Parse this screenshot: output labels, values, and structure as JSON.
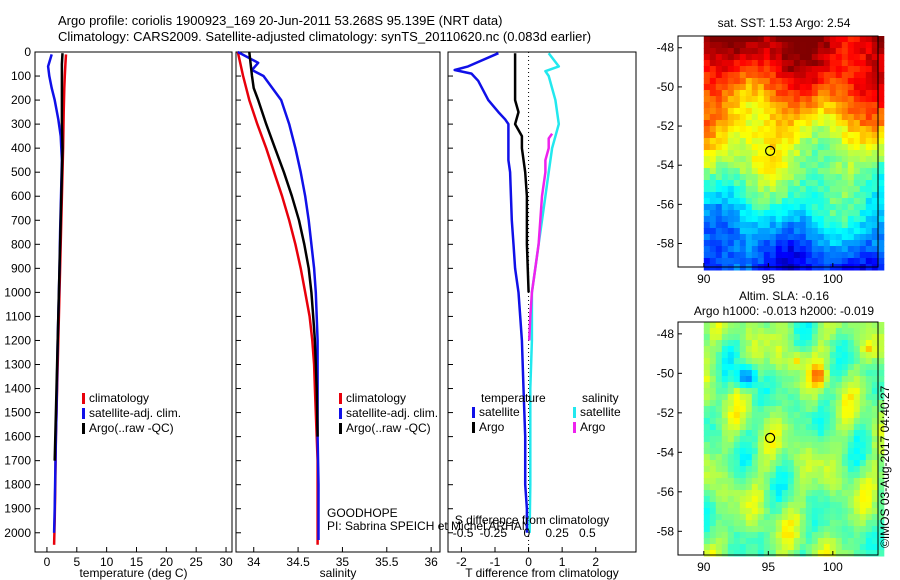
{
  "header": {
    "line1": "Argo profile: coriolis 1900923_169 20-Jun-2011 53.268S 95.139E (NRT data)",
    "line2": "Climatology: CARS2009. Satellite-adjusted climatology: synTS_20110620.nc (0.083d earlier)"
  },
  "credit": "©IMOS 03-Aug-2017 04:40:27",
  "colors": {
    "red": "#e8000b",
    "blue": "#1010e8",
    "black": "#000000",
    "cyan": "#22e8ee",
    "magenta": "#ee22ee"
  },
  "chart_data": [
    {
      "type": "line",
      "xlabel": "temperature (deg C)",
      "xlim": [
        -2,
        31
      ],
      "ylim": [
        2080,
        0
      ],
      "xticks": [
        0,
        5,
        10,
        15,
        20,
        25,
        30
      ],
      "yticks": [
        0,
        100,
        200,
        300,
        400,
        500,
        600,
        700,
        800,
        900,
        1000,
        1100,
        1200,
        1300,
        1400,
        1500,
        1600,
        1700,
        1800,
        1900,
        2000
      ],
      "legend_position": "lower-center",
      "series": [
        {
          "name": "climatology",
          "color": "red",
          "x": [
            3.2,
            3.1,
            3.0,
            2.9,
            2.8,
            2.7,
            2.6,
            2.5,
            2.4,
            2.3,
            2.2,
            2.1,
            2.0,
            1.9,
            1.8,
            1.7,
            1.6,
            1.5,
            1.4,
            1.3,
            1.2
          ],
          "y": [
            10,
            50,
            100,
            150,
            250,
            400,
            500,
            600,
            700,
            800,
            900,
            1000,
            1100,
            1200,
            1300,
            1400,
            1500,
            1600,
            1800,
            1950,
            2050
          ]
        },
        {
          "name": "satellite-adj. clim.",
          "color": "blue",
          "x": [
            0.8,
            0.2,
            0.4,
            0.8,
            1.3,
            1.9,
            2.3,
            2.5,
            2.4,
            2.3,
            2.2,
            2.1,
            2.0,
            1.9,
            1.8,
            1.7,
            1.6,
            1.5,
            1.4,
            1.3,
            1.2
          ],
          "y": [
            10,
            60,
            100,
            150,
            200,
            280,
            350,
            450,
            550,
            650,
            750,
            900,
            1000,
            1100,
            1200,
            1350,
            1500,
            1600,
            1750,
            1900,
            2000
          ]
        },
        {
          "name": "Argo(..raw -QC)",
          "color": "black",
          "x": [
            2.6,
            2.5,
            2.5,
            2.5,
            2.5,
            2.6,
            2.5,
            2.4,
            2.3,
            2.2,
            2.1,
            2.0,
            1.9,
            1.8,
            1.7,
            1.6,
            1.5,
            1.4,
            1.3
          ],
          "y": [
            5,
            50,
            100,
            200,
            300,
            400,
            500,
            600,
            700,
            800,
            900,
            1000,
            1100,
            1200,
            1300,
            1400,
            1500,
            1600,
            1700
          ]
        }
      ]
    },
    {
      "type": "line",
      "xlabel": "salinity",
      "xlim": [
        33.8,
        36.1
      ],
      "ylim": [
        2080,
        0
      ],
      "xticks": [
        34,
        34.5,
        35,
        35.5,
        36
      ],
      "legend_position": "lower-center",
      "annotation": [
        "GOODHOPE",
        "PI: Sabrina SPEICH et Michel ARHAN"
      ],
      "series": [
        {
          "name": "climatology",
          "color": "red",
          "x": [
            33.82,
            33.88,
            33.95,
            34.04,
            34.14,
            34.23,
            34.32,
            34.4,
            34.47,
            34.53,
            34.58,
            34.63,
            34.66,
            34.68,
            34.69,
            34.7,
            34.71,
            34.72,
            34.72,
            34.72,
            34.72
          ],
          "y": [
            0,
            100,
            200,
            300,
            400,
            500,
            600,
            700,
            800,
            900,
            1000,
            1100,
            1200,
            1300,
            1400,
            1500,
            1600,
            1700,
            1800,
            1900,
            2050
          ]
        },
        {
          "name": "satellite-adj. clim.",
          "color": "blue",
          "x": [
            33.82,
            34.05,
            33.98,
            34.11,
            34.21,
            34.31,
            34.4,
            34.47,
            34.53,
            34.58,
            34.62,
            34.65,
            34.68,
            34.7,
            34.71,
            34.72,
            34.72,
            34.72,
            34.73,
            34.73,
            34.73
          ],
          "y": [
            0,
            45,
            75,
            100,
            150,
            200,
            300,
            400,
            500,
            600,
            700,
            800,
            900,
            1000,
            1100,
            1200,
            1400,
            1600,
            1800,
            1950,
            2030
          ]
        },
        {
          "name": "Argo(..raw -QC)",
          "color": "black",
          "x": [
            33.95,
            33.98,
            34.0,
            34.05,
            34.14,
            34.24,
            34.34,
            34.43,
            34.51,
            34.57,
            34.62,
            34.65,
            34.67,
            34.69,
            34.7,
            34.71,
            34.72
          ],
          "y": [
            0,
            100,
            150,
            200,
            300,
            400,
            500,
            600,
            700,
            800,
            900,
            1000,
            1100,
            1200,
            1300,
            1400,
            1600
          ]
        }
      ]
    },
    {
      "type": "line",
      "xlabel": "T difference from climatology",
      "x2label": "S difference from climatology",
      "xlim": [
        -2.4,
        3.2
      ],
      "ylim": [
        2080,
        0
      ],
      "xticks": [
        -2,
        -1,
        0,
        1,
        2
      ],
      "x2ticks": [
        "-0.5",
        "-0.25",
        "0",
        "0.25",
        "0.5"
      ],
      "legend_position": "lower-center",
      "legend_titles": [
        "temperature",
        "salinity"
      ],
      "series": [
        {
          "name": "satellite",
          "group": "temperature",
          "color": "blue",
          "x": [
            -0.9,
            -1.8,
            -2.2,
            -1.7,
            -1.5,
            -1.2,
            -0.9,
            -0.7,
            -0.6,
            -0.6,
            -0.6,
            -0.55,
            -0.5,
            -0.45,
            -0.4,
            -0.3,
            -0.25,
            -0.2,
            -0.15,
            -0.1,
            -0.1,
            -0.05,
            -0.05
          ],
          "y": [
            5,
            60,
            75,
            90,
            120,
            200,
            250,
            280,
            300,
            350,
            450,
            500,
            700,
            800,
            900,
            1000,
            1100,
            1200,
            1400,
            1600,
            1800,
            1900,
            2000
          ]
        },
        {
          "name": "Argo",
          "group": "temperature",
          "color": "black",
          "x": [
            -0.4,
            -0.4,
            -0.4,
            -0.4,
            -0.3,
            -0.4,
            -0.2,
            -0.2,
            -0.1,
            -0.05,
            -0.05,
            0
          ],
          "y": [
            5,
            80,
            120,
            200,
            250,
            300,
            350,
            400,
            500,
            600,
            800,
            1000
          ]
        },
        {
          "name": "satellite",
          "group": "salinity",
          "color": "cyan",
          "x": [
            0.6,
            0.9,
            0.5,
            0.6,
            0.8,
            0.9,
            0.7,
            0.6,
            0.5,
            0.4,
            0.3,
            0.2,
            0.1,
            0.1,
            0.05,
            0.05,
            0.05,
            0.03
          ],
          "y": [
            5,
            60,
            80,
            100,
            200,
            300,
            400,
            500,
            600,
            700,
            800,
            900,
            1000,
            1200,
            1400,
            1600,
            1800,
            2000
          ]
        },
        {
          "name": "Argo",
          "group": "salinity",
          "color": "magenta",
          "x": [
            0.7,
            0.6,
            0.6,
            0.5,
            0.5,
            0.4,
            0.35,
            0.3,
            0.2,
            0.1,
            0.05,
            0.02
          ],
          "y": [
            340,
            360,
            400,
            450,
            500,
            600,
            700,
            800,
            900,
            1000,
            1100,
            1200
          ]
        }
      ]
    },
    {
      "type": "heatmap",
      "title": "sat. SST: 1.53 Argo: 2.54",
      "xlim": [
        88,
        103.5
      ],
      "ylim": [
        -59.2,
        -47.4
      ],
      "xticks": [
        90,
        95,
        100
      ],
      "yticks": [
        -48,
        -50,
        -52,
        -54,
        -56,
        -58
      ],
      "data_xlim": [
        90,
        103.5
      ],
      "data_ylim": [
        -59.2,
        -47.4
      ],
      "marker": {
        "x": 95.139,
        "y": -53.268
      },
      "colormap": "jet, warm north to cold south"
    },
    {
      "type": "heatmap",
      "title": "Altim. SLA: -0.16",
      "subtitle": "Argo h1000: -0.013 h2000: -0.019",
      "xlim": [
        88,
        103.5
      ],
      "ylim": [
        -59.2,
        -47.4
      ],
      "xticks": [
        90,
        95,
        100
      ],
      "yticks": [
        -48,
        -50,
        -52,
        -54,
        -56,
        -58
      ],
      "data_xlim": [
        90,
        103.5
      ],
      "data_ylim": [
        -59.2,
        -47.4
      ],
      "marker": {
        "x": 95.139,
        "y": -53.268
      },
      "colormap": "jet, mostly green with eddies"
    }
  ]
}
